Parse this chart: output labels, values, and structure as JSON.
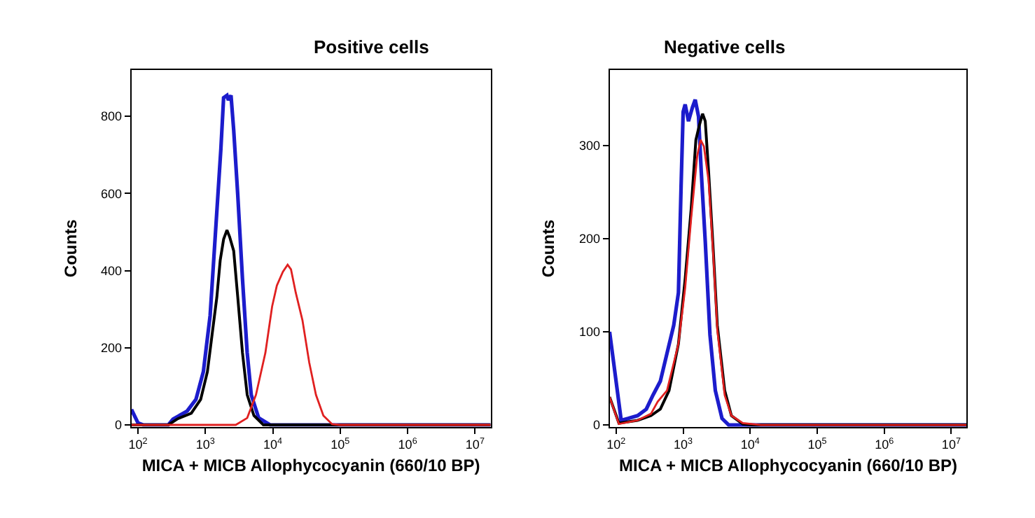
{
  "chart_data": [
    {
      "type": "line",
      "title": "Positive cells",
      "xlabel": "MICA + MICB Allophycocyanin (660/10 BP)",
      "ylabel": "Counts",
      "log": "x",
      "marker": "none",
      "line_style": "solid",
      "xlim": [
        80,
        17000000
      ],
      "xticks": [
        {
          "value": 100,
          "label": "10$^{2}$"
        },
        {
          "value": 1000,
          "label": "10$^{3}$"
        },
        {
          "value": 10000,
          "label": "10$^{4}$"
        },
        {
          "value": 100000,
          "label": "10$^{5}$"
        },
        {
          "value": 1000000,
          "label": "10$^{6}$"
        },
        {
          "value": 10000000,
          "label": "10$^{7}$"
        }
      ],
      "ylim": [
        -5,
        920
      ],
      "yticks": [
        0,
        200,
        400,
        600,
        800
      ],
      "series": [
        {
          "color": "#1c1ccc",
          "x": [
            80,
            100,
            119,
            282,
            331,
            537,
            724,
            933,
            1175,
            1413,
            1698,
            1862,
            2089,
            2188,
            2399,
            2630,
            3020,
            3548,
            4169,
            4786,
            6166,
            9120,
            17000000
          ],
          "values": [
            40,
            5,
            0,
            0,
            15,
            36,
            66,
            138,
            283,
            500,
            716,
            848,
            854,
            842,
            854,
            764,
            596,
            379,
            187,
            78,
            18,
            0,
            0
          ]
        },
        {
          "color": "#000000",
          "x": [
            80,
            282,
            389,
            617,
            851,
            1072,
            1259,
            1479,
            1660,
            1862,
            2089,
            2291,
            2630,
            3020,
            3548,
            4169,
            5248,
            7244,
            17000000
          ],
          "values": [
            0,
            0,
            16,
            30,
            66,
            138,
            235,
            331,
            427,
            481,
            505,
            487,
            451,
            331,
            187,
            78,
            24,
            0,
            0
          ]
        },
        {
          "color": "#e02020",
          "x": [
            80,
            2818,
            4169,
            5623,
            7762,
            9772,
            11482,
            14125,
            16596,
            18621,
            21878,
            27542,
            34674,
            43652,
            56234,
            75858,
            97724,
            17000000
          ],
          "values": [
            0,
            0,
            18,
            78,
            187,
            307,
            361,
            397,
            415,
            403,
            343,
            271,
            162,
            78,
            24,
            2,
            0,
            0
          ]
        }
      ]
    },
    {
      "type": "line",
      "title": "Negative cells",
      "xlabel": "MICA + MICB Allophycocyanin (660/10 BP)",
      "ylabel": "Counts",
      "log": "x",
      "marker": "none",
      "line_style": "solid",
      "xlim": [
        80,
        17000000
      ],
      "xticks": [
        {
          "value": 100,
          "label": "10$^{2}$"
        },
        {
          "value": 1000,
          "label": "10$^{3}$"
        },
        {
          "value": 10000,
          "label": "10$^{4}$"
        },
        {
          "value": 100000,
          "label": "10$^{5}$"
        },
        {
          "value": 1000000,
          "label": "10$^{6}$"
        },
        {
          "value": 10000000,
          "label": "10$^{7}$"
        }
      ],
      "ylim": [
        -2,
        381
      ],
      "yticks": [
        0,
        100,
        200,
        300
      ],
      "series": [
        {
          "color": "#1c1ccc",
          "x": [
            80,
            119,
            151,
            209,
            282,
            355,
            457,
            575,
            724,
            851,
            933,
            1000,
            1072,
            1202,
            1380,
            1514,
            1698,
            1862,
            2138,
            2512,
            3020,
            3802,
            4786,
            17000000
          ],
          "values": [
            100,
            5,
            7,
            10,
            17,
            32,
            47,
            77,
            107,
            142,
            257,
            336,
            344,
            326,
            341,
            349,
            331,
            272,
            197,
            97,
            37,
            7,
            0,
            0
          ]
        },
        {
          "color": "#000000",
          "x": [
            80,
            110,
            209,
            331,
            457,
            617,
            851,
            1072,
            1318,
            1549,
            1738,
            1950,
            2138,
            2399,
            2818,
            3236,
            4169,
            5248,
            7762,
            10715,
            17000000
          ],
          "values": [
            30,
            2,
            5,
            10,
            17,
            37,
            87,
            157,
            232,
            306,
            321,
            334,
            326,
            272,
            187,
            107,
            37,
            10,
            1,
            0,
            0
          ]
        },
        {
          "color": "#e02020",
          "x": [
            80,
            110,
            209,
            331,
            417,
            575,
            851,
            1072,
            1318,
            1622,
            1820,
            2042,
            2399,
            2818,
            3236,
            4169,
            5248,
            7762,
            14454,
            17000000
          ],
          "values": [
            30,
            1,
            5,
            12,
            25,
            37,
            87,
            147,
            222,
            289,
            306,
            299,
            262,
            182,
            102,
            32,
            10,
            2,
            0,
            0
          ]
        }
      ]
    }
  ]
}
